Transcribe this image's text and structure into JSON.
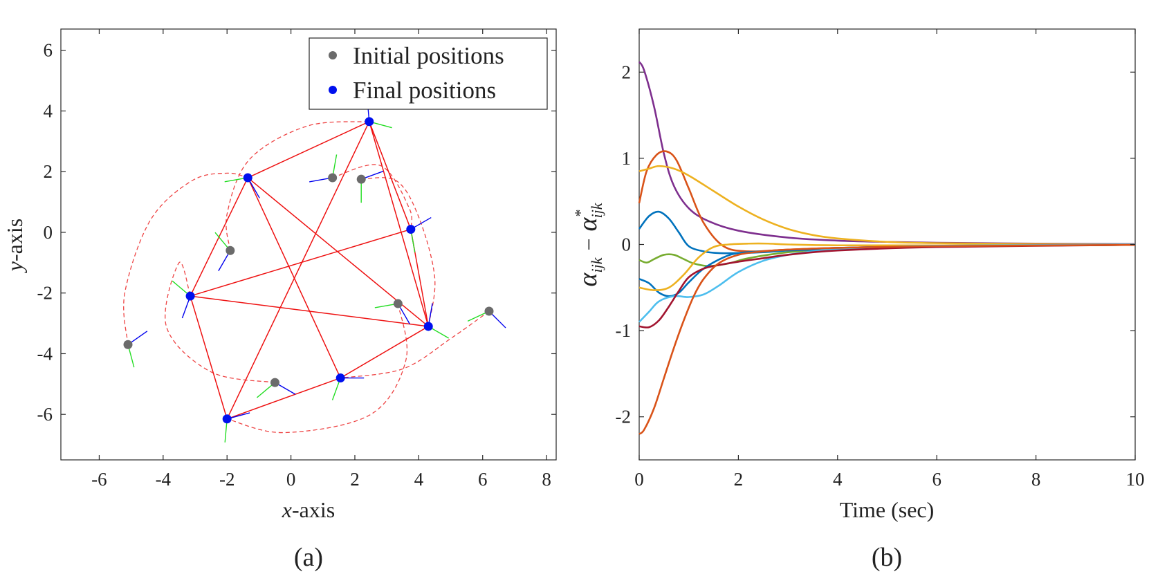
{
  "chart_data": [
    {
      "type": "scatter",
      "panel": "(a)",
      "xlabel_italic": "x",
      "xlabel_rest": "-axis",
      "ylabel_italic": "y",
      "ylabel_rest": "-axis",
      "xlim": [
        -7.2,
        8.3
      ],
      "ylim": [
        -7.5,
        6.7
      ],
      "xticks": [
        -6,
        -4,
        -2,
        0,
        2,
        4,
        6,
        8
      ],
      "yticks": [
        -6,
        -4,
        -2,
        0,
        2,
        4,
        6
      ],
      "legend": [
        "Initial positions",
        "Final positions"
      ],
      "legend_position": "top-right",
      "colors": {
        "initial": "#6b6b6b",
        "final": "#0010ee",
        "edges": "#ee1111",
        "trajectory": "#ee4444",
        "heading_x": "#0000ee",
        "heading_y": "#22dd22"
      },
      "initial_positions": [
        [
          -5.1,
          -3.7
        ],
        [
          -1.9,
          -0.6
        ],
        [
          -0.5,
          -4.95
        ],
        [
          1.3,
          1.8
        ],
        [
          2.2,
          1.75
        ],
        [
          3.35,
          -2.35
        ],
        [
          6.2,
          -2.6
        ]
      ],
      "final_positions": [
        [
          2.45,
          3.65
        ],
        [
          -1.35,
          1.8
        ],
        [
          3.75,
          0.1
        ],
        [
          -3.15,
          -2.1
        ],
        [
          4.3,
          -3.1
        ],
        [
          1.55,
          -4.8
        ],
        [
          -2.0,
          -6.15
        ]
      ],
      "formation_edges": [
        [
          0,
          1
        ],
        [
          0,
          2
        ],
        [
          0,
          4
        ],
        [
          0,
          6
        ],
        [
          1,
          3
        ],
        [
          1,
          4
        ],
        [
          1,
          5
        ],
        [
          3,
          2
        ],
        [
          3,
          4
        ],
        [
          3,
          6
        ],
        [
          2,
          4
        ],
        [
          6,
          5
        ],
        [
          5,
          4
        ]
      ],
      "trajectories": [
        [
          [
            -5.1,
            -3.7
          ],
          [
            -5.2,
            -2.0
          ],
          [
            -4.4,
            0.4
          ],
          [
            -3.1,
            1.7
          ],
          [
            -2.0,
            1.95
          ],
          [
            -1.35,
            1.8
          ]
        ],
        [
          [
            -1.9,
            -0.6
          ],
          [
            -2.0,
            0.6
          ],
          [
            -1.3,
            2.4
          ],
          [
            0.5,
            3.5
          ],
          [
            2.45,
            3.65
          ]
        ],
        [
          [
            1.3,
            1.8
          ],
          [
            2.8,
            2.2
          ],
          [
            3.7,
            0.8
          ],
          [
            3.75,
            0.1
          ]
        ],
        [
          [
            2.2,
            1.75
          ],
          [
            3.3,
            1.7
          ],
          [
            4.0,
            0.5
          ],
          [
            4.5,
            -1.5
          ],
          [
            4.3,
            -3.1
          ]
        ],
        [
          [
            3.35,
            -2.35
          ],
          [
            3.6,
            -4.2
          ],
          [
            2.5,
            -6.0
          ],
          [
            -0.2,
            -6.6
          ],
          [
            -2.0,
            -6.15
          ]
        ],
        [
          [
            -0.5,
            -4.95
          ],
          [
            -2.5,
            -4.6
          ],
          [
            -3.9,
            -3.1
          ],
          [
            -3.5,
            -1.0
          ],
          [
            -3.15,
            -2.1
          ]
        ],
        [
          [
            6.2,
            -2.6
          ],
          [
            5.0,
            -3.5
          ],
          [
            3.5,
            -4.5
          ],
          [
            1.55,
            -4.8
          ]
        ]
      ]
    },
    {
      "type": "line",
      "panel": "(b)",
      "xlabel": "Time (sec)",
      "ylabel": "α_ijk − α*_ijk",
      "ylabel_main_left": "α",
      "ylabel_sub_left": "ijk",
      "ylabel_minus": "−",
      "ylabel_main_right": "α",
      "ylabel_sup_right": "*",
      "ylabel_sub_right": "ijk",
      "xlim": [
        0,
        10
      ],
      "ylim": [
        -2.5,
        2.5
      ],
      "xticks": [
        0,
        2,
        4,
        6,
        8,
        10
      ],
      "yticks": [
        -2,
        -1,
        0,
        1,
        2
      ],
      "series": [
        {
          "name": "s1",
          "color": "#7e2f8e",
          "x": [
            0,
            0.1,
            0.3,
            0.5,
            0.7,
            1.0,
            1.4,
            2.0,
            3.0,
            4.0,
            5.0,
            6.0,
            8.0,
            10.0
          ],
          "y": [
            2.12,
            2.02,
            1.6,
            1.05,
            0.68,
            0.42,
            0.27,
            0.16,
            0.08,
            0.045,
            0.03,
            0.02,
            0.01,
            0.005
          ]
        },
        {
          "name": "s2",
          "color": "#d95319",
          "x": [
            0,
            0.15,
            0.35,
            0.55,
            0.75,
            1.0,
            1.3,
            1.7,
            2.2,
            3.0,
            4.0,
            6.0,
            10.0
          ],
          "y": [
            0.48,
            0.85,
            1.04,
            1.08,
            0.98,
            0.65,
            0.25,
            -0.02,
            -0.08,
            -0.06,
            -0.04,
            -0.02,
            -0.005
          ]
        },
        {
          "name": "s3",
          "color": "#edb120",
          "x": [
            0,
            0.2,
            0.4,
            0.7,
            1.0,
            1.5,
            2.0,
            2.5,
            3.0,
            3.5,
            4.0,
            5.0,
            6.0,
            8.0,
            10.0
          ],
          "y": [
            0.85,
            0.88,
            0.91,
            0.88,
            0.8,
            0.62,
            0.44,
            0.29,
            0.18,
            0.11,
            0.07,
            0.03,
            0.015,
            0.005,
            0.0
          ]
        },
        {
          "name": "s4",
          "color": "#0072bd",
          "x": [
            0,
            0.2,
            0.4,
            0.6,
            0.8,
            1.0,
            1.3,
            1.6,
            2.0,
            2.5,
            3.0,
            4.0,
            6.0,
            10.0
          ],
          "y": [
            0.18,
            0.33,
            0.38,
            0.3,
            0.14,
            -0.02,
            -0.08,
            -0.1,
            -0.1,
            -0.09,
            -0.07,
            -0.04,
            -0.02,
            -0.005
          ]
        },
        {
          "name": "s5",
          "color": "#77ac30",
          "x": [
            0,
            0.15,
            0.3,
            0.5,
            0.7,
            0.9,
            1.1,
            1.4,
            1.8,
            2.2,
            3.0,
            4.0,
            6.0,
            10.0
          ],
          "y": [
            -0.18,
            -0.21,
            -0.17,
            -0.12,
            -0.12,
            -0.17,
            -0.22,
            -0.25,
            -0.22,
            -0.16,
            -0.09,
            -0.05,
            -0.02,
            -0.005
          ]
        },
        {
          "name": "s6",
          "color": "#0072bd",
          "x": [
            0,
            0.2,
            0.4,
            0.6,
            0.8,
            1.0,
            1.3,
            1.7,
            2.0,
            2.5,
            3.0,
            4.0,
            6.0,
            10.0
          ],
          "y": [
            -0.4,
            -0.45,
            -0.56,
            -0.6,
            -0.56,
            -0.44,
            -0.28,
            -0.15,
            -0.1,
            -0.08,
            -0.07,
            -0.05,
            -0.02,
            -0.005
          ]
        },
        {
          "name": "s7",
          "color": "#edb120",
          "x": [
            0,
            0.3,
            0.6,
            0.9,
            1.2,
            1.5,
            1.8,
            2.2,
            2.6,
            3.0,
            4.0,
            6.0,
            10.0
          ],
          "y": [
            -0.5,
            -0.53,
            -0.5,
            -0.35,
            -0.15,
            -0.03,
            0.0,
            0.01,
            0.01,
            0.0,
            -0.01,
            -0.01,
            0.0
          ]
        },
        {
          "name": "s8",
          "color": "#4dbeee",
          "x": [
            0,
            0.2,
            0.4,
            0.7,
            1.0,
            1.3,
            1.6,
            2.0,
            2.5,
            3.0,
            3.5,
            4.0,
            5.0,
            6.0,
            10.0
          ],
          "y": [
            -0.9,
            -0.78,
            -0.66,
            -0.6,
            -0.61,
            -0.58,
            -0.48,
            -0.32,
            -0.19,
            -0.12,
            -0.08,
            -0.05,
            -0.03,
            -0.015,
            0.0
          ]
        },
        {
          "name": "s9",
          "color": "#a2142f",
          "x": [
            0,
            0.2,
            0.4,
            0.6,
            0.8,
            1.0,
            1.3,
            1.6,
            2.0,
            2.5,
            3.0,
            4.0,
            6.0,
            10.0
          ],
          "y": [
            -0.95,
            -0.96,
            -0.88,
            -0.72,
            -0.54,
            -0.38,
            -0.28,
            -0.24,
            -0.2,
            -0.16,
            -0.12,
            -0.07,
            -0.03,
            -0.005
          ]
        },
        {
          "name": "s10",
          "color": "#d95319",
          "x": [
            0,
            0.1,
            0.3,
            0.5,
            0.7,
            0.9,
            1.1,
            1.3,
            1.6,
            2.0,
            2.5,
            3.0,
            4.0,
            6.0,
            10.0
          ],
          "y": [
            -2.2,
            -2.15,
            -1.9,
            -1.55,
            -1.2,
            -0.88,
            -0.6,
            -0.4,
            -0.22,
            -0.12,
            -0.08,
            -0.06,
            -0.04,
            -0.02,
            -0.005
          ]
        }
      ]
    }
  ]
}
